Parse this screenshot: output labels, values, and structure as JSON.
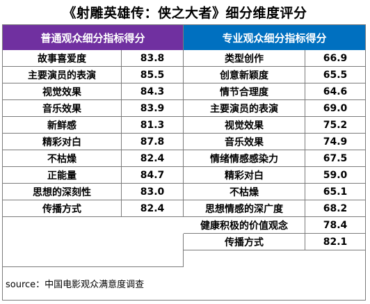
{
  "title": "《射雕英雄传：侠之大者》细分维度评分",
  "left_table": {
    "header": "普通观众细分指标得分",
    "rows": [
      {
        "name": "故事喜爱度",
        "score": "83.8"
      },
      {
        "name": "主要演员的表演",
        "score": "85.5"
      },
      {
        "name": "视觉效果",
        "score": "84.3"
      },
      {
        "name": "音乐效果",
        "score": "83.9"
      },
      {
        "name": "新鲜感",
        "score": "81.3"
      },
      {
        "name": "精彩对白",
        "score": "87.8"
      },
      {
        "name": "不枯燥",
        "score": "82.4"
      },
      {
        "name": "正能量",
        "score": "84.7"
      },
      {
        "name": "思想的深刻性",
        "score": "83.0"
      },
      {
        "name": "传播方式",
        "score": "82.4"
      }
    ]
  },
  "right_table": {
    "header": "专业观众细分指标得分",
    "rows": [
      {
        "name": "类型创作",
        "score": "66.9"
      },
      {
        "name": "创意新颖度",
        "score": "65.5"
      },
      {
        "name": "情节合理度",
        "score": "64.6"
      },
      {
        "name": "主要演员的表演",
        "score": "69.0"
      },
      {
        "name": "视觉效果",
        "score": "75.2"
      },
      {
        "name": "音乐效果",
        "score": "74.9"
      },
      {
        "name": "情绪情感感染力",
        "score": "67.5"
      },
      {
        "name": "精彩对白",
        "score": "59.0"
      },
      {
        "name": "不枯燥",
        "score": "65.1"
      },
      {
        "name": "思想情感的深广度",
        "score": "68.2"
      },
      {
        "name": "健康积极的价值观念",
        "score": "78.4"
      },
      {
        "name": "传播方式",
        "score": "82.1"
      }
    ]
  },
  "source": "source：中国电影观众满意度调查"
}
